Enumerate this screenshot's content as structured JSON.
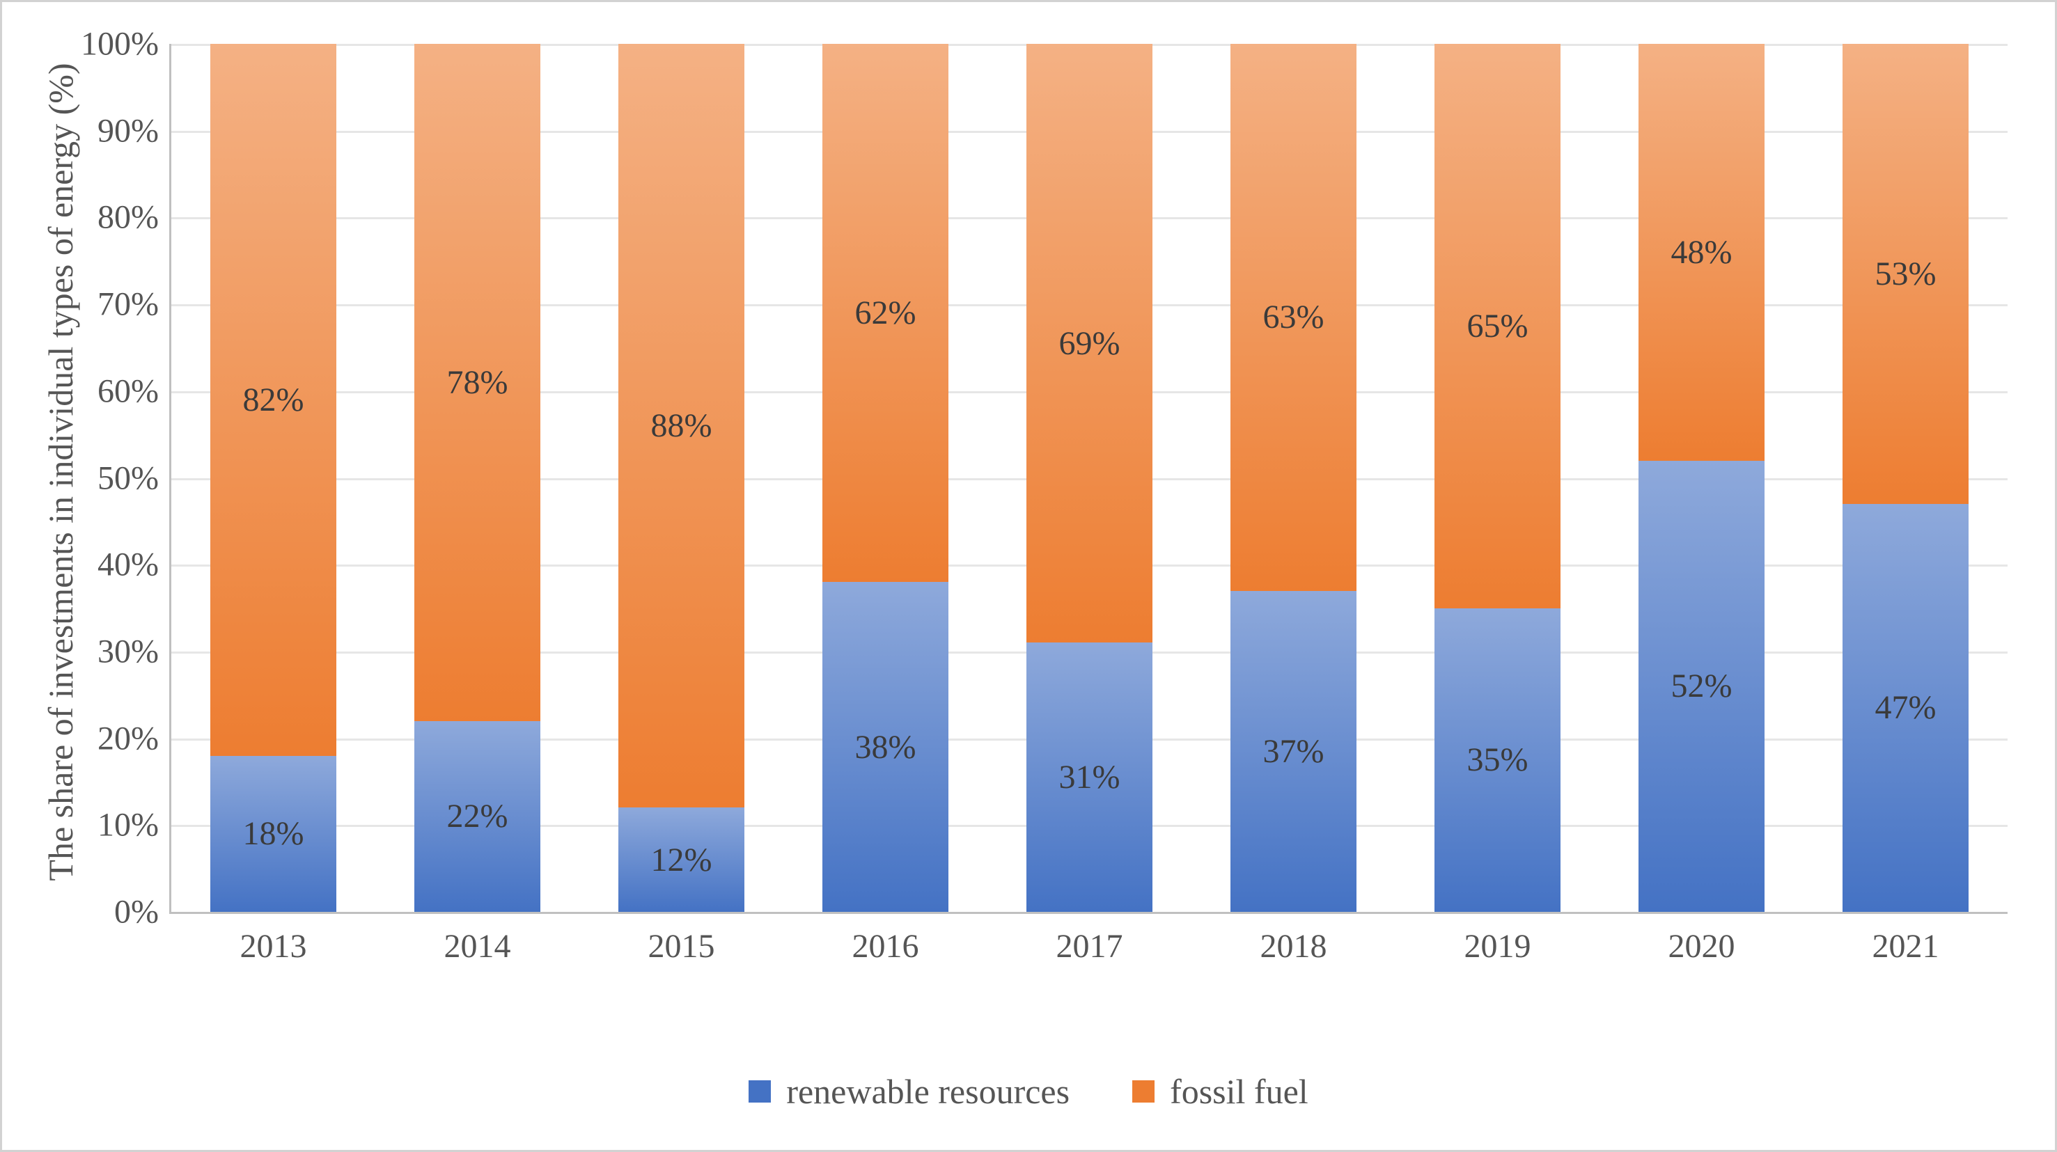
{
  "chart": {
    "type": "stacked-bar-100pct",
    "background_color": "#ffffff",
    "frame_border_color": "#d2d2d2",
    "axis_line_color": "#c0c0c0",
    "grid_color": "#e6e6e6",
    "text_color": "#555555",
    "data_label_color": "#3a3a3a",
    "font_family": "Palatino Linotype",
    "tick_fontsize": 48,
    "data_label_fontsize": 48,
    "y_axis_title_fontsize": 50,
    "legend_fontsize": 50,
    "y_axis_title": "The share of investments in individual types of energy (%)",
    "ylim": [
      0,
      100
    ],
    "ytick_step": 10,
    "yticks": [
      "0%",
      "10%",
      "20%",
      "30%",
      "40%",
      "50%",
      "60%",
      "70%",
      "80%",
      "90%",
      "100%"
    ],
    "categories": [
      "2013",
      "2014",
      "2015",
      "2016",
      "2017",
      "2018",
      "2019",
      "2020",
      "2021"
    ],
    "bar_width_ratio": 0.62,
    "series": [
      {
        "name": "renewable resources",
        "color_top": "#8ea9db",
        "color_bottom": "#4472c4",
        "legend_swatch_color": "#4472c4",
        "values": [
          18,
          22,
          12,
          38,
          31,
          37,
          35,
          52,
          47
        ],
        "data_labels": [
          "18%",
          "22%",
          "12%",
          "38%",
          "31%",
          "37%",
          "35%",
          "52%",
          "47%"
        ]
      },
      {
        "name": "fossil fuel",
        "color_top": "#f4b184",
        "color_bottom": "#ed7d31",
        "legend_swatch_color": "#ed7d31",
        "values": [
          82,
          78,
          88,
          62,
          69,
          63,
          65,
          48,
          53
        ],
        "data_labels": [
          "82%",
          "78%",
          "88%",
          "62%",
          "69%",
          "63%",
          "65%",
          "48%",
          "53%"
        ]
      }
    ],
    "legend_items": [
      "renewable resources",
      "fossil fuel"
    ]
  }
}
